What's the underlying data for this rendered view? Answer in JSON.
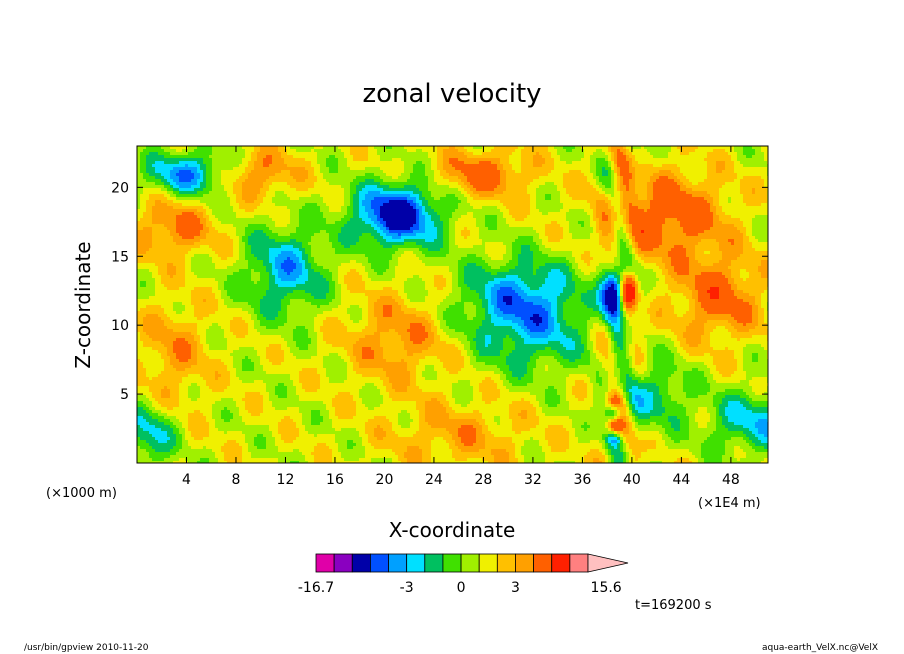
{
  "chart_data": {
    "type": "heatmap",
    "title": "zonal velocity",
    "xlabel": "X-coordinate",
    "ylabel": "Z-coordinate",
    "x_unit_left": "(×1000 m)",
    "x_unit_right": "(×1E4 m)",
    "xlim": [
      0,
      51
    ],
    "ylim": [
      0,
      23
    ],
    "x_ticks": [
      4,
      8,
      12,
      16,
      20,
      24,
      28,
      32,
      36,
      40,
      44,
      48
    ],
    "y_ticks": [
      5,
      10,
      15,
      20
    ],
    "time_label": "t=169200 s",
    "colorbar": {
      "levels": [
        -16.7,
        -12,
        -8,
        -5,
        -4,
        -3,
        -2,
        -1,
        0,
        1,
        2,
        3,
        4,
        6,
        9,
        12,
        15.6
      ],
      "colors": [
        "#e000a8",
        "#8a00c0",
        "#0000a8",
        "#0050ff",
        "#00a0ff",
        "#00e0ff",
        "#00c060",
        "#40e000",
        "#a0f000",
        "#f0f000",
        "#ffc000",
        "#ffa000",
        "#ff6000",
        "#ff2000",
        "#ff8080",
        "#ffc0c0"
      ],
      "labels": [
        "-16.7",
        "-3",
        "0",
        "3",
        "15.6"
      ]
    },
    "grid": false,
    "legend": "colorbar-bottom"
  },
  "footer": {
    "left": "/usr/bin/gpview   2010-11-20",
    "right": "aqua-earth_VelX.nc@VelX"
  }
}
